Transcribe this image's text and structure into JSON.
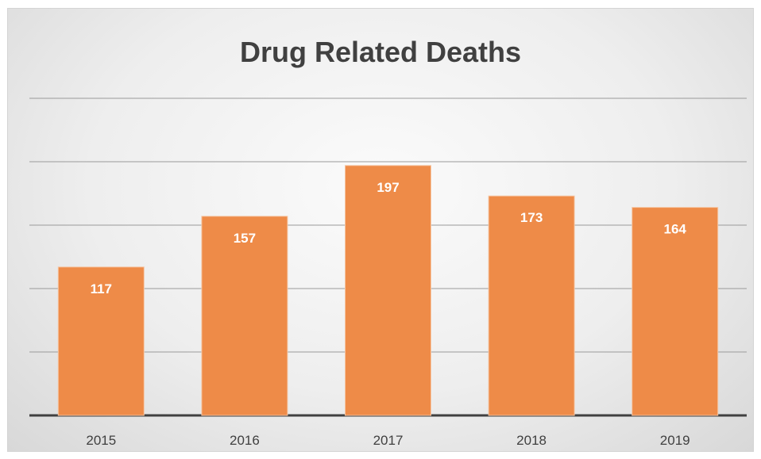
{
  "chart_data": {
    "type": "bar",
    "title": "Drug Related Deaths",
    "categories": [
      "2015",
      "2016",
      "2017",
      "2018",
      "2019"
    ],
    "values": [
      117,
      157,
      197,
      173,
      164
    ],
    "ylim": [
      0,
      250
    ],
    "grid": true,
    "legend": "none",
    "bar_color": "#ee8b48",
    "label_color": "#ffffff"
  }
}
